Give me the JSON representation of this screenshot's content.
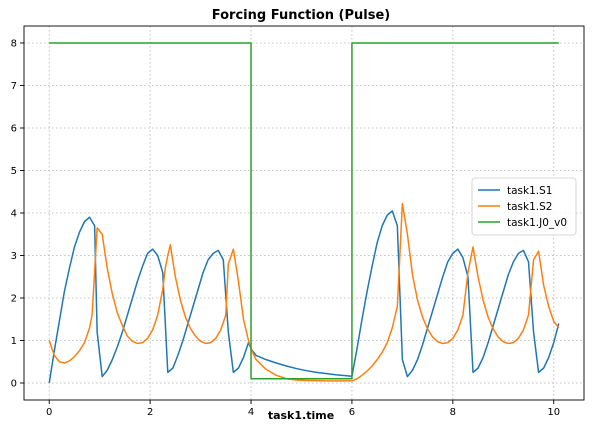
{
  "chart_data": {
    "type": "line",
    "title": "Forcing Function (Pulse)",
    "xlabel": "task1.time",
    "ylabel": "",
    "xlim": [
      -0.5,
      10.6
    ],
    "ylim": [
      -0.4,
      8.4
    ],
    "xticks": [
      0,
      2,
      4,
      6,
      8,
      10
    ],
    "yticks": [
      0,
      1,
      2,
      3,
      4,
      5,
      6,
      7,
      8
    ],
    "grid": true,
    "legend_position": "center-right",
    "series": [
      {
        "name": "task1.S1",
        "color": "#1f77b4",
        "x": [
          0,
          0.1,
          0.2,
          0.3,
          0.4,
          0.5,
          0.6,
          0.7,
          0.8,
          0.9,
          0.95,
          1.05,
          1.15,
          1.25,
          1.35,
          1.45,
          1.55,
          1.65,
          1.75,
          1.85,
          1.95,
          2.05,
          2.15,
          2.25,
          2.35,
          2.45,
          2.55,
          2.65,
          2.75,
          2.85,
          2.95,
          3.05,
          3.15,
          3.25,
          3.35,
          3.45,
          3.55,
          3.65,
          3.75,
          3.85,
          3.95,
          4.0,
          4.1,
          4.3,
          4.5,
          4.7,
          4.9,
          5.1,
          5.3,
          5.5,
          5.7,
          6.0,
          6.1,
          6.2,
          6.3,
          6.4,
          6.5,
          6.6,
          6.7,
          6.8,
          6.9,
          7.0,
          7.1,
          7.2,
          7.3,
          7.4,
          7.5,
          7.6,
          7.7,
          7.8,
          7.9,
          8.0,
          8.1,
          8.2,
          8.3,
          8.4,
          8.5,
          8.6,
          8.7,
          8.8,
          8.9,
          9.0,
          9.1,
          9.2,
          9.3,
          9.4,
          9.5,
          9.6,
          9.7,
          9.8,
          9.9,
          10.0,
          10.1
        ],
        "y": [
          0.0,
          0.75,
          1.45,
          2.15,
          2.7,
          3.2,
          3.55,
          3.8,
          3.9,
          3.7,
          1.2,
          0.15,
          0.3,
          0.55,
          0.85,
          1.2,
          1.6,
          2.0,
          2.4,
          2.75,
          3.05,
          3.15,
          3.0,
          2.6,
          0.25,
          0.35,
          0.65,
          1.0,
          1.4,
          1.8,
          2.2,
          2.6,
          2.9,
          3.05,
          3.12,
          2.9,
          1.2,
          0.25,
          0.35,
          0.6,
          0.95,
          0.8,
          0.65,
          0.55,
          0.47,
          0.4,
          0.34,
          0.29,
          0.25,
          0.22,
          0.19,
          0.16,
          0.8,
          1.5,
          2.15,
          2.75,
          3.3,
          3.7,
          3.95,
          4.05,
          3.7,
          0.55,
          0.15,
          0.3,
          0.55,
          0.9,
          1.3,
          1.7,
          2.1,
          2.5,
          2.85,
          3.05,
          3.15,
          2.95,
          2.5,
          0.25,
          0.35,
          0.6,
          0.95,
          1.35,
          1.75,
          2.15,
          2.55,
          2.85,
          3.05,
          3.12,
          2.85,
          1.2,
          0.25,
          0.35,
          0.6,
          0.95,
          1.4
        ]
      },
      {
        "name": "task1.S2",
        "color": "#ff7f0e",
        "x": [
          0,
          0.1,
          0.2,
          0.3,
          0.4,
          0.5,
          0.6,
          0.7,
          0.8,
          0.85,
          0.95,
          1.05,
          1.15,
          1.25,
          1.35,
          1.45,
          1.55,
          1.65,
          1.75,
          1.85,
          1.95,
          2.05,
          2.15,
          2.25,
          2.3,
          2.35,
          2.4,
          2.5,
          2.6,
          2.7,
          2.8,
          2.9,
          3.0,
          3.1,
          3.2,
          3.3,
          3.4,
          3.5,
          3.55,
          3.65,
          3.75,
          3.85,
          3.95,
          4.0,
          4.1,
          4.3,
          4.5,
          4.7,
          4.9,
          5.1,
          5.3,
          5.5,
          5.7,
          6.0,
          6.1,
          6.2,
          6.3,
          6.4,
          6.5,
          6.6,
          6.7,
          6.8,
          6.9,
          7.0,
          7.1,
          7.2,
          7.3,
          7.4,
          7.5,
          7.6,
          7.7,
          7.8,
          7.9,
          8.0,
          8.1,
          8.2,
          8.3,
          8.4,
          8.5,
          8.6,
          8.7,
          8.8,
          8.9,
          9.0,
          9.1,
          9.2,
          9.3,
          9.4,
          9.5,
          9.6,
          9.7,
          9.8,
          9.9,
          10.0,
          10.1
        ],
        "y": [
          1.0,
          0.65,
          0.5,
          0.47,
          0.52,
          0.62,
          0.76,
          0.95,
          1.3,
          1.6,
          3.65,
          3.5,
          2.7,
          2.1,
          1.65,
          1.35,
          1.1,
          0.98,
          0.93,
          0.95,
          1.05,
          1.25,
          1.6,
          2.2,
          2.7,
          3.0,
          3.25,
          2.5,
          1.95,
          1.55,
          1.28,
          1.1,
          0.98,
          0.93,
          0.95,
          1.05,
          1.25,
          1.6,
          2.8,
          3.15,
          2.4,
          1.5,
          1.0,
          0.8,
          0.55,
          0.32,
          0.18,
          0.1,
          0.07,
          0.06,
          0.055,
          0.05,
          0.05,
          0.05,
          0.1,
          0.18,
          0.28,
          0.4,
          0.55,
          0.72,
          0.95,
          1.3,
          1.8,
          4.22,
          3.5,
          2.55,
          1.95,
          1.55,
          1.27,
          1.08,
          0.97,
          0.93,
          0.95,
          1.05,
          1.25,
          1.6,
          2.6,
          3.2,
          2.5,
          1.95,
          1.55,
          1.27,
          1.08,
          0.97,
          0.93,
          0.95,
          1.05,
          1.25,
          1.6,
          2.9,
          3.1,
          2.3,
          1.8,
          1.45,
          1.3
        ]
      },
      {
        "name": "task1.J0_v0",
        "color": "#2ca02c",
        "x": [
          0,
          4.0,
          4.0,
          6.0,
          6.0,
          10.1
        ],
        "y": [
          8,
          8,
          0.1,
          0.1,
          8,
          8
        ]
      }
    ]
  }
}
